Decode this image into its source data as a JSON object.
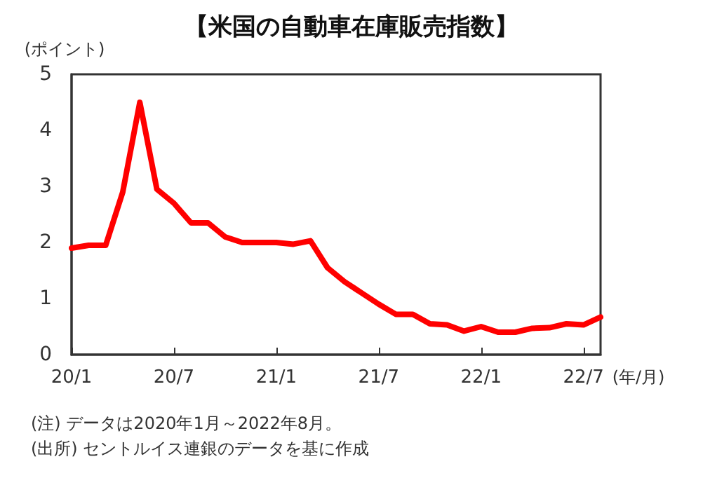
{
  "chart_data": {
    "type": "line",
    "title": "【米国の自動車在庫販売指数】",
    "ylabel": "(ポイント)",
    "xlabel": "(年/月)",
    "categories": [
      "20/1",
      null,
      null,
      null,
      null,
      null,
      "20/7",
      null,
      null,
      null,
      null,
      null,
      "21/1",
      null,
      null,
      null,
      null,
      null,
      "21/7",
      null,
      null,
      null,
      null,
      null,
      "22/1",
      null,
      null,
      null,
      null,
      null,
      "22/7",
      null
    ],
    "series": [
      {
        "color": "#ff0000",
        "values": [
          1.9,
          1.95,
          1.95,
          2.9,
          4.5,
          2.95,
          2.7,
          2.35,
          2.35,
          2.1,
          2.0,
          2.0,
          2.0,
          1.97,
          2.03,
          1.55,
          1.3,
          1.1,
          0.9,
          0.72,
          0.72,
          0.55,
          0.53,
          0.42,
          0.5,
          0.4,
          0.4,
          0.47,
          0.48,
          0.55,
          0.53,
          0.67
        ]
      }
    ],
    "ylim": [
      0,
      5
    ],
    "yticks": [
      0,
      1,
      2,
      3,
      4,
      5
    ],
    "grid": false,
    "marker": "none",
    "line_style": "solid",
    "annotations": [
      "(注) データは2020年1月～2022年8月。",
      "(出所) セントルイス連銀のデータを基に作成"
    ]
  }
}
